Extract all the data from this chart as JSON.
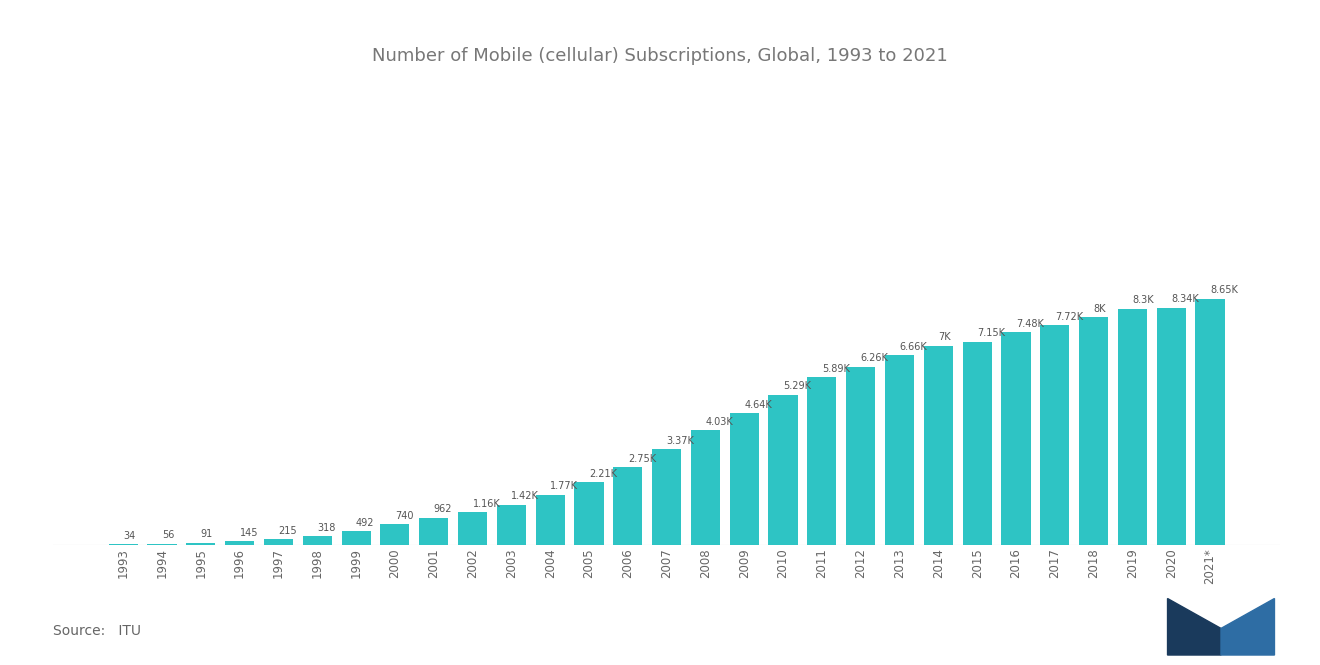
{
  "title": "Number of Mobile (cellular) Subscriptions, Global, 1993 to 2021",
  "categories": [
    "1993",
    "1994",
    "1995",
    "1996",
    "1997",
    "1998",
    "1999",
    "2000",
    "2001",
    "2002",
    "2003",
    "2004",
    "2005",
    "2006",
    "2007",
    "2008",
    "2009",
    "2010",
    "2011",
    "2012",
    "2013",
    "2014",
    "2015",
    "2016",
    "2017",
    "2018",
    "2019",
    "2020",
    "2021*"
  ],
  "values": [
    34,
    56,
    91,
    145,
    215,
    318,
    492,
    740,
    962,
    1160,
    1420,
    1770,
    2210,
    2750,
    3370,
    4030,
    4640,
    5290,
    5890,
    6260,
    6660,
    7000,
    7150,
    7480,
    7720,
    8000,
    8300,
    8340,
    8650
  ],
  "labels": [
    "34",
    "56",
    "91",
    "145",
    "215",
    "318",
    "492",
    "740",
    "962",
    "1.16K",
    "1.42K",
    "1.77K",
    "2.21K",
    "2.75K",
    "3.37K",
    "4.03K",
    "4.64K",
    "5.29K",
    "5.89K",
    "6.26K",
    "6.66K",
    "7K",
    "7.15K",
    "7.48K",
    "7.72K",
    "8K",
    "8.3K",
    "8.34K",
    "8.65K"
  ],
  "bar_color": "#2ec4c4",
  "background_color": "#FFFFFF",
  "title_color": "#777777",
  "label_color": "#555555",
  "source_text": "Source:   ITU",
  "ylim": [
    0,
    14000
  ]
}
